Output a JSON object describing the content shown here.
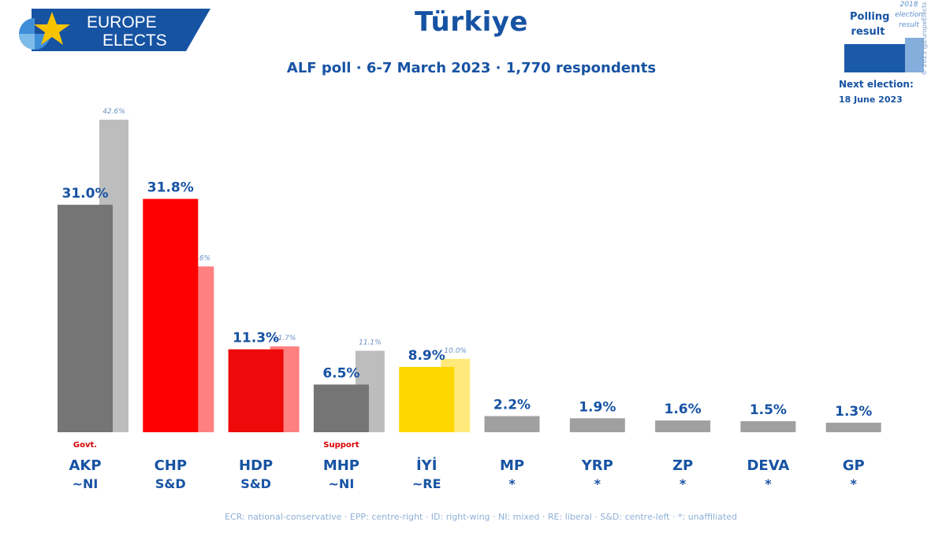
{
  "brand": {
    "line1": "EUROPE",
    "line2": "ELECTS",
    "colors": {
      "banner": "#1753a3",
      "star": "#f7c300"
    }
  },
  "title": "Türkiye",
  "subtitle": "ALF poll · 6-7 March 2023 · 1,770 respondents",
  "legend": {
    "polling": "Polling result",
    "election": "2018 election result",
    "next_election_label": "Next election:",
    "next_election_date": "18 June 2023",
    "copyright": "© 2023 @EuropeElects"
  },
  "footer": "ECR: national-conservative · EPP: centre-right · ID: right-wing · NI: mixed · RE: liberal · S&D: centre-left · *: unaffiliated",
  "chart_data": {
    "type": "bar",
    "categories": [
      "AKP",
      "CHP",
      "HDP",
      "MHP",
      "İYİ",
      "MP",
      "YRP",
      "ZP",
      "DEVA",
      "GP"
    ],
    "groups": [
      "~NI",
      "S&D",
      "S&D",
      "~NI",
      "~RE",
      "*",
      "*",
      "*",
      "*",
      "*"
    ],
    "roles": [
      "Govt.",
      "",
      "",
      "Support",
      "",
      "",
      "",
      "",
      "",
      ""
    ],
    "series": [
      {
        "name": "Polling result",
        "values": [
          31.0,
          31.8,
          11.3,
          6.5,
          8.9,
          2.2,
          1.9,
          1.6,
          1.5,
          1.3
        ],
        "labels": [
          "31.0%",
          "31.8%",
          "11.3%",
          "6.5%",
          "8.9%",
          "2.2%",
          "1.9%",
          "1.6%",
          "1.5%",
          "1.3%"
        ]
      },
      {
        "name": "2018 election result",
        "values": [
          42.6,
          22.6,
          11.7,
          11.1,
          10.0,
          null,
          null,
          null,
          null,
          null
        ],
        "labels": [
          "42.6%",
          "22.6%",
          "11.7%",
          "11.1%",
          "10.0%",
          "",
          "",
          "",
          "",
          ""
        ]
      }
    ],
    "colors": [
      "#757575",
      "#ff0000",
      "#ee0a0a",
      "#757575",
      "#ffd700",
      "#a0a0a0",
      "#a0a0a0",
      "#a0a0a0",
      "#a0a0a0",
      "#a0a0a0"
    ],
    "light_colors": [
      "#bdbdbd",
      "#ff8080",
      "#ff8080",
      "#bdbdbd",
      "#ffe97a",
      "",
      "",
      "",
      "",
      ""
    ],
    "ylim": [
      0,
      42.6
    ]
  }
}
